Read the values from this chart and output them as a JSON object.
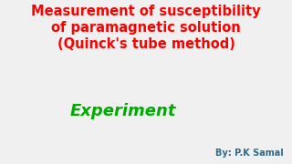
{
  "background_color": "#f0f0f0",
  "title_line1": "Measurement of susceptibility",
  "title_line2": "of paramagnetic solution",
  "title_line3": "(Quinck's tube method)",
  "title_color": "#ff0000",
  "title_fontsize": 10.5,
  "title_fontweight": "bold",
  "experiment_text": "Experiment",
  "experiment_color": "#00aa00",
  "experiment_fontsize": 13,
  "byline_text": "By: P.K Samal",
  "byline_color": "#2e6b8a",
  "byline_fontsize": 7.0
}
